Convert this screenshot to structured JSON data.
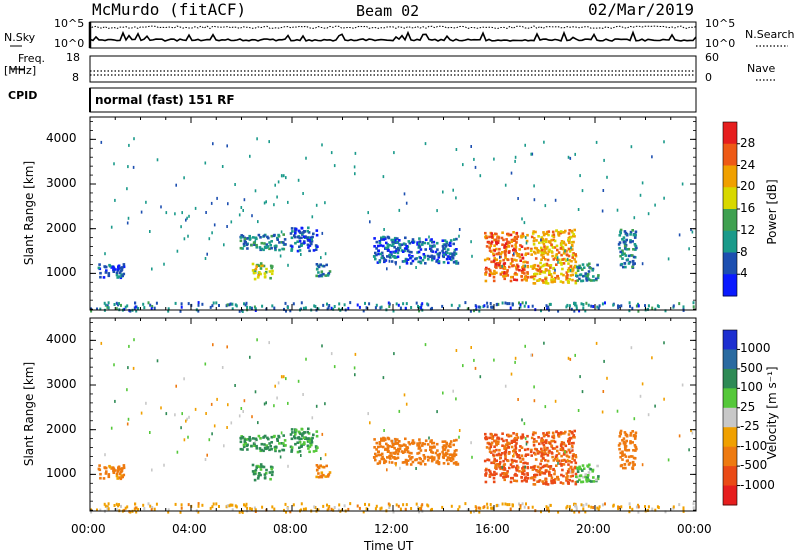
{
  "header": {
    "station": "McMurdo (fitACF)",
    "beam": "Beam 02",
    "date": "02/Mar/2019"
  },
  "noise_panel": {
    "left_label": "N.Sky",
    "right_label": "N.Search",
    "ytick_top": "10^5",
    "ytick_bottom": "10^0"
  },
  "freq_panel": {
    "left_label_1": "Freq.",
    "left_label_2": "[MHz]",
    "right_label": "Nave",
    "left_tick_top": "18",
    "left_tick_bottom": "8",
    "right_tick_top": "60",
    "right_tick_bottom": "0"
  },
  "cpid": {
    "label": "CPID",
    "value": "normal (fast) 151 RF"
  },
  "power_panel": {
    "ylabel": "Slant Range [km]",
    "colorbar_label": "Power [dB]",
    "colorbar_ticks": [
      "28",
      "24",
      "20",
      "16",
      "12",
      "8",
      "4"
    ],
    "colorbar_colors": [
      "#e61e1e",
      "#ee5a16",
      "#f0a000",
      "#d8d800",
      "#3fa050",
      "#1a9a8a",
      "#1d4fb0",
      "#0a1aff"
    ]
  },
  "velocity_panel": {
    "ylabel": "Slant Range [km]",
    "colorbar_label": "Velocity [m s⁻¹]",
    "colorbar_ticks": [
      "1000",
      "500",
      "100",
      "25",
      "-25",
      "-100",
      "-500",
      "-1000"
    ],
    "colorbar_colors": [
      "#1d2fd0",
      "#2a6aa0",
      "#2e8a55",
      "#55c83a",
      "#c8c8c8",
      "#f0a000",
      "#ee7a10",
      "#ea4a16",
      "#e61e1e"
    ]
  },
  "xaxis": {
    "label": "Time UT",
    "ticks": [
      "00:00",
      "04:00",
      "08:00",
      "12:00",
      "16:00",
      "20:00",
      "00:00"
    ]
  },
  "chart_data": [
    {
      "type": "heatmap",
      "title": "Power",
      "ylabel": "Slant Range [km]",
      "xlabel": "Time UT",
      "xlim": [
        "00:00",
        "24:00"
      ],
      "ylim": [
        180,
        4500
      ],
      "yticks": [
        1000,
        2000,
        3000,
        4000
      ],
      "colorbar": {
        "label": "Power [dB]",
        "range": [
          0,
          30
        ],
        "ticks": [
          4,
          8,
          12,
          16,
          20,
          24,
          28
        ]
      },
      "patches": [
        {
          "t": [
            0.3,
            1.3
          ],
          "range": [
            900,
            1250
          ],
          "value": 6
        },
        {
          "t": [
            5.9,
            7.7
          ],
          "range": [
            1550,
            1900
          ],
          "value": 9
        },
        {
          "t": [
            6.4,
            7.2
          ],
          "range": [
            900,
            1250
          ],
          "value": 16
        },
        {
          "t": [
            7.9,
            9.0
          ],
          "range": [
            1500,
            2050
          ],
          "value": 6
        },
        {
          "t": [
            8.9,
            9.5
          ],
          "range": [
            950,
            1250
          ],
          "value": 9
        },
        {
          "t": [
            11.2,
            13.0
          ],
          "range": [
            1250,
            1850
          ],
          "value": 6
        },
        {
          "t": [
            13.0,
            14.5
          ],
          "range": [
            1250,
            1800
          ],
          "value": 6
        },
        {
          "t": [
            15.6,
            17.3
          ],
          "range": [
            850,
            1950
          ],
          "value": 25
        },
        {
          "t": [
            17.4,
            19.2
          ],
          "range": [
            800,
            2000
          ],
          "value": 22
        },
        {
          "t": [
            19.2,
            20.1
          ],
          "range": [
            850,
            1250
          ],
          "value": 10
        },
        {
          "t": [
            20.9,
            21.6
          ],
          "range": [
            1150,
            2000
          ],
          "value": 9
        },
        {
          "t": [
            0.0,
            24.0
          ],
          "range": [
            180,
            380
          ],
          "value": 8
        }
      ]
    },
    {
      "type": "heatmap",
      "title": "Velocity",
      "ylabel": "Slant Range [km]",
      "xlabel": "Time UT",
      "xlim": [
        "00:00",
        "24:00"
      ],
      "ylim": [
        180,
        4500
      ],
      "yticks": [
        1000,
        2000,
        3000,
        4000
      ],
      "colorbar": {
        "label": "Velocity [m s⁻¹]",
        "range": [
          -1000,
          1000
        ],
        "ticks": [
          1000,
          500,
          100,
          25,
          -25,
          -100,
          -500,
          -1000
        ]
      },
      "patches": [
        {
          "t": [
            0.3,
            1.3
          ],
          "range": [
            900,
            1250
          ],
          "value": -150
        },
        {
          "t": [
            5.9,
            7.7
          ],
          "range": [
            1550,
            1900
          ],
          "value": 150
        },
        {
          "t": [
            6.4,
            7.2
          ],
          "range": [
            900,
            1250
          ],
          "value": 150
        },
        {
          "t": [
            7.9,
            9.0
          ],
          "range": [
            1500,
            2050
          ],
          "value": 120
        },
        {
          "t": [
            8.9,
            9.5
          ],
          "range": [
            950,
            1250
          ],
          "value": -150
        },
        {
          "t": [
            11.2,
            13.0
          ],
          "range": [
            1250,
            1850
          ],
          "value": -300
        },
        {
          "t": [
            13.0,
            14.5
          ],
          "range": [
            1250,
            1800
          ],
          "value": -300
        },
        {
          "t": [
            15.6,
            17.3
          ],
          "range": [
            850,
            1950
          ],
          "value": -600
        },
        {
          "t": [
            17.4,
            19.2
          ],
          "range": [
            800,
            2000
          ],
          "value": -500
        },
        {
          "t": [
            19.2,
            20.1
          ],
          "range": [
            850,
            1250
          ],
          "value": 60
        },
        {
          "t": [
            20.9,
            21.6
          ],
          "range": [
            1150,
            2000
          ],
          "value": -250
        },
        {
          "t": [
            0.0,
            24.0
          ],
          "range": [
            180,
            380
          ],
          "value": -60
        }
      ]
    }
  ]
}
